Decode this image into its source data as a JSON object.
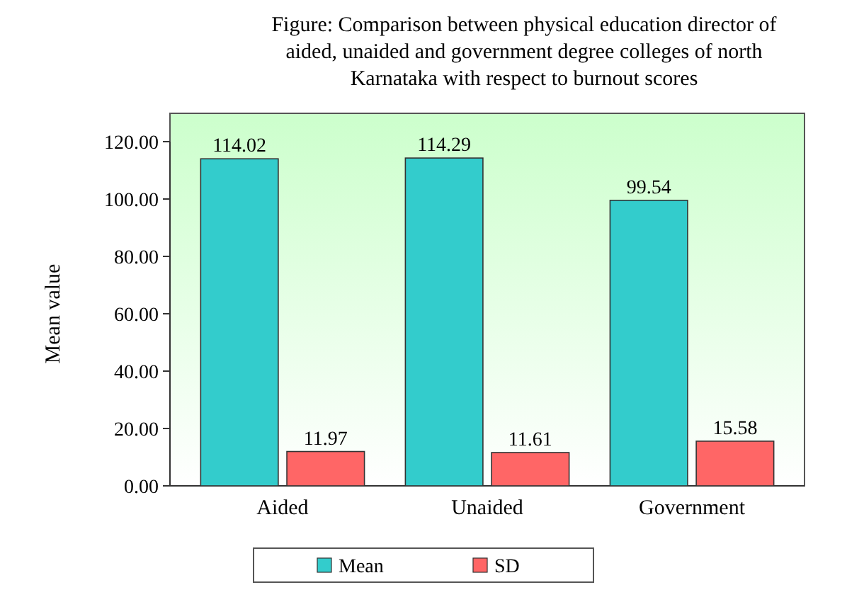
{
  "chart_data": {
    "type": "bar",
    "title": "Figure:  Comparison between physical education director of aided, unaided and government  degree colleges of north Karnataka with respect to burnout scores",
    "ylabel": "Mean value",
    "categories": [
      "Aided",
      "Unaided",
      "Government"
    ],
    "series": [
      {
        "name": "Mean",
        "color": "#33cccc",
        "values": [
          114.02,
          114.29,
          99.54
        ]
      },
      {
        "name": "SD",
        "color": "#ff6666",
        "values": [
          11.97,
          11.61,
          15.58
        ]
      }
    ],
    "ylim": [
      0,
      120
    ],
    "yticks": [
      {
        "value": 0,
        "label": "0.00"
      },
      {
        "value": 20,
        "label": "20.00"
      },
      {
        "value": 40,
        "label": "40.00"
      },
      {
        "value": 60,
        "label": "60.00"
      },
      {
        "value": 80,
        "label": "80.00"
      },
      {
        "value": 100,
        "label": "100.00"
      },
      {
        "value": 120,
        "label": "120.00"
      }
    ],
    "data_labels": true,
    "legend": "bottom",
    "grid": false
  }
}
